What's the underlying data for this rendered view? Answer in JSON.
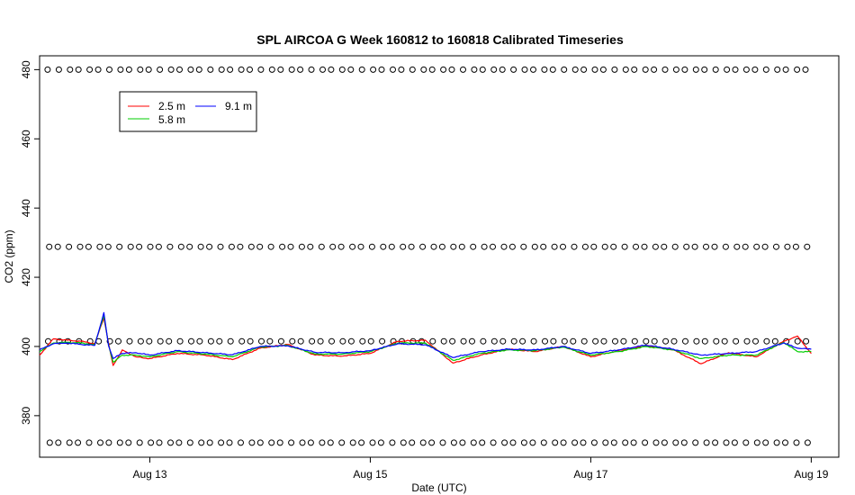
{
  "chart_data": {
    "type": "line",
    "title": "SPL AIRCOA G  Week 160812 to 160818  Calibrated Timeseries",
    "xlabel": "Date (UTC)",
    "ylabel": "CO2 (ppm)",
    "x_unit": "date",
    "xlim": [
      "2016-08-12T00:00",
      "2016-08-19T06:00"
    ],
    "ylim": [
      368,
      484
    ],
    "x_ticks": [
      {
        "date": "2016-08-13T00:00",
        "label": "Aug 13"
      },
      {
        "date": "2016-08-15T00:00",
        "label": "Aug 15"
      },
      {
        "date": "2016-08-17T00:00",
        "label": "Aug 17"
      },
      {
        "date": "2016-08-19T00:00",
        "label": "Aug 19"
      }
    ],
    "y_ticks": [
      380,
      400,
      420,
      440,
      460,
      480
    ],
    "grid": false,
    "legend": {
      "placement": "top-left",
      "entries": [
        {
          "name": "2.5 m",
          "color": "#ff0000"
        },
        {
          "name": "5.8 m",
          "color": "#00cd00"
        },
        {
          "name": "9.1 m",
          "color": "#0000ff"
        }
      ]
    },
    "series": [
      {
        "name": "2.5 m",
        "color": "#ff0000",
        "x": [
          "2016-08-12T00:00",
          "2016-08-12T03:00",
          "2016-08-12T06:00",
          "2016-08-12T09:00",
          "2016-08-12T12:00",
          "2016-08-12T14:00",
          "2016-08-12T15:00",
          "2016-08-12T16:00",
          "2016-08-12T18:00",
          "2016-08-12T21:00",
          "2016-08-13T00:00",
          "2016-08-13T06:00",
          "2016-08-13T12:00",
          "2016-08-13T18:00",
          "2016-08-14T00:00",
          "2016-08-14T06:00",
          "2016-08-14T12:00",
          "2016-08-14T18:00",
          "2016-08-15T00:00",
          "2016-08-15T06:00",
          "2016-08-15T12:00",
          "2016-08-15T18:00",
          "2016-08-16T00:00",
          "2016-08-16T06:00",
          "2016-08-16T12:00",
          "2016-08-16T18:00",
          "2016-08-17T00:00",
          "2016-08-17T06:00",
          "2016-08-17T12:00",
          "2016-08-17T18:00",
          "2016-08-18T00:00",
          "2016-08-18T06:00",
          "2016-08-18T12:00",
          "2016-08-18T18:00",
          "2016-08-18T21:00",
          "2016-08-19T00:00"
        ],
        "y": [
          397.5,
          402.2,
          401.8,
          401.5,
          400.8,
          408.2,
          401.0,
          394.5,
          399.0,
          397.0,
          396.5,
          398.0,
          397.5,
          396.2,
          399.5,
          400.6,
          397.5,
          397.2,
          398.0,
          401.5,
          401.8,
          395.2,
          397.5,
          399.2,
          398.5,
          400.0,
          397.0,
          398.8,
          400.2,
          399.0,
          395.0,
          398.2,
          397.0,
          401.5,
          403.0,
          398.0
        ]
      },
      {
        "name": "5.8 m",
        "color": "#00cd00",
        "x": [
          "2016-08-12T00:00",
          "2016-08-12T03:00",
          "2016-08-12T06:00",
          "2016-08-12T09:00",
          "2016-08-12T12:00",
          "2016-08-12T14:00",
          "2016-08-12T15:00",
          "2016-08-12T16:00",
          "2016-08-12T18:00",
          "2016-08-12T21:00",
          "2016-08-13T00:00",
          "2016-08-13T06:00",
          "2016-08-13T12:00",
          "2016-08-13T18:00",
          "2016-08-14T00:00",
          "2016-08-14T06:00",
          "2016-08-14T12:00",
          "2016-08-14T18:00",
          "2016-08-15T00:00",
          "2016-08-15T06:00",
          "2016-08-15T12:00",
          "2016-08-15T18:00",
          "2016-08-16T00:00",
          "2016-08-16T06:00",
          "2016-08-16T12:00",
          "2016-08-16T18:00",
          "2016-08-17T00:00",
          "2016-08-17T06:00",
          "2016-08-17T12:00",
          "2016-08-17T18:00",
          "2016-08-18T00:00",
          "2016-08-18T06:00",
          "2016-08-18T12:00",
          "2016-08-18T18:00",
          "2016-08-18T21:00",
          "2016-08-19T00:00"
        ],
        "y": [
          398.5,
          401.0,
          401.2,
          401.0,
          400.5,
          409.0,
          400.5,
          395.5,
          397.5,
          397.5,
          397.0,
          398.5,
          397.8,
          397.0,
          399.8,
          400.3,
          397.8,
          397.8,
          398.5,
          401.0,
          401.0,
          396.0,
          398.0,
          399.0,
          398.8,
          399.8,
          397.5,
          398.5,
          400.0,
          399.0,
          396.5,
          397.5,
          397.5,
          401.2,
          398.5,
          398.5
        ]
      },
      {
        "name": "9.1 m",
        "color": "#0000ff",
        "x": [
          "2016-08-12T00:00",
          "2016-08-12T03:00",
          "2016-08-12T06:00",
          "2016-08-12T09:00",
          "2016-08-12T12:00",
          "2016-08-12T14:00",
          "2016-08-12T15:00",
          "2016-08-12T16:00",
          "2016-08-12T18:00",
          "2016-08-12T21:00",
          "2016-08-13T00:00",
          "2016-08-13T06:00",
          "2016-08-13T12:00",
          "2016-08-13T18:00",
          "2016-08-14T00:00",
          "2016-08-14T06:00",
          "2016-08-14T12:00",
          "2016-08-14T18:00",
          "2016-08-15T00:00",
          "2016-08-15T06:00",
          "2016-08-15T12:00",
          "2016-08-15T18:00",
          "2016-08-16T00:00",
          "2016-08-16T06:00",
          "2016-08-16T12:00",
          "2016-08-16T18:00",
          "2016-08-17T00:00",
          "2016-08-17T06:00",
          "2016-08-17T12:00",
          "2016-08-17T18:00",
          "2016-08-18T00:00",
          "2016-08-18T06:00",
          "2016-08-18T12:00",
          "2016-08-18T18:00",
          "2016-08-18T21:00",
          "2016-08-19T00:00"
        ],
        "y": [
          399.0,
          400.8,
          401.0,
          400.6,
          400.3,
          409.8,
          400.2,
          396.5,
          398.0,
          398.2,
          397.5,
          398.8,
          398.2,
          397.6,
          400.0,
          400.2,
          398.3,
          398.2,
          398.8,
          400.8,
          400.5,
          396.8,
          398.5,
          399.2,
          399.0,
          400.0,
          398.0,
          399.0,
          400.4,
          399.2,
          397.5,
          398.0,
          398.5,
          401.0,
          399.5,
          399.2
        ]
      }
    ],
    "markers": {
      "symbol": "open-circle",
      "color": "#000000",
      "levels": [
        480.0,
        428.8,
        401.5,
        372.2
      ]
    }
  }
}
